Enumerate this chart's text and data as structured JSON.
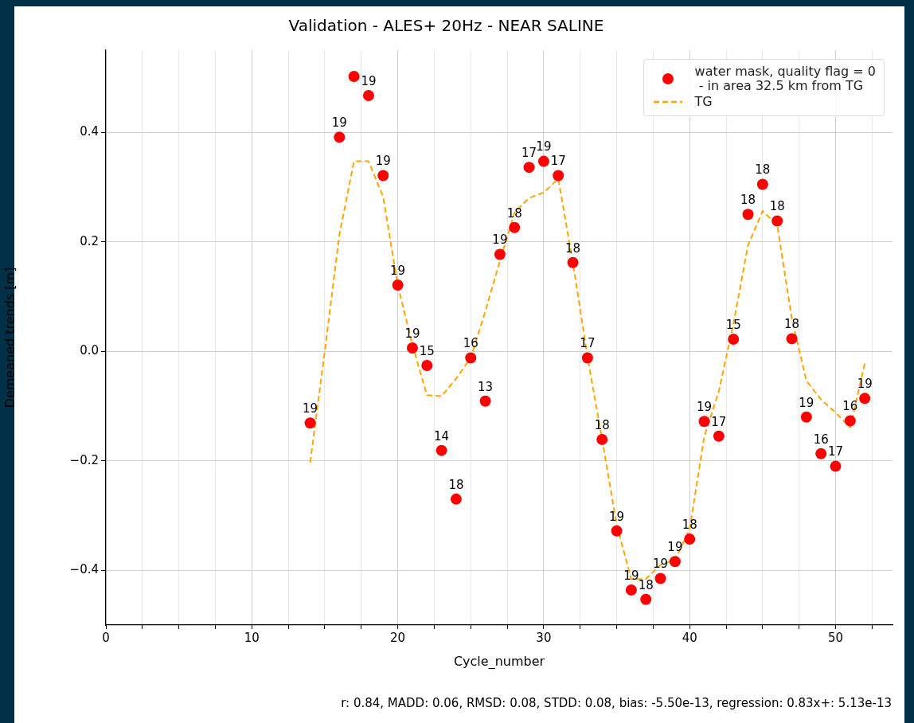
{
  "chart_data": {
    "type": "scatter",
    "title": "Validation - ALES+ 20Hz - NEAR SALINE",
    "xlabel": "Cycle_number",
    "ylabel": "Demeaned trends [m]",
    "annotations": [
      "r: 0.84, MADD: 0.06, RMSD: 0.08, STDD: 0.08, bias: -5.50e-13, regression: 0.83x+: 5.13e-13",
      {
        "text": "19",
        "x": 14,
        "y": -0.131
      },
      {
        "text": "19",
        "x": 16,
        "y": 0.391
      },
      {
        "text": "19",
        "x": 18,
        "y": 0.467
      },
      {
        "text": "19",
        "x": 19,
        "y": 0.321
      },
      {
        "text": "19",
        "x": 20,
        "y": 0.121
      },
      {
        "text": "19",
        "x": 21,
        "y": 0.006
      },
      {
        "text": "15",
        "x": 22,
        "y": -0.026
      },
      {
        "text": "14",
        "x": 23,
        "y": -0.181
      },
      {
        "text": "18",
        "x": 24,
        "y": -0.27
      },
      {
        "text": "16",
        "x": 25,
        "y": -0.012
      },
      {
        "text": "13",
        "x": 26,
        "y": -0.091
      },
      {
        "text": "19",
        "x": 27,
        "y": 0.177
      },
      {
        "text": "18",
        "x": 28,
        "y": 0.226
      },
      {
        "text": "17",
        "x": 29,
        "y": 0.336
      },
      {
        "text": "19",
        "x": 30,
        "y": 0.347
      },
      {
        "text": "17",
        "x": 31,
        "y": 0.321
      },
      {
        "text": "18",
        "x": 32,
        "y": 0.162
      },
      {
        "text": "17",
        "x": 33,
        "y": -0.012
      },
      {
        "text": "18",
        "x": 34,
        "y": -0.161
      },
      {
        "text": "19",
        "x": 35,
        "y": -0.328
      },
      {
        "text": "19",
        "x": 36,
        "y": -0.436
      },
      {
        "text": "18",
        "x": 37,
        "y": -0.453
      },
      {
        "text": "19",
        "x": 38,
        "y": -0.415
      },
      {
        "text": "19",
        "x": 39,
        "y": -0.384
      },
      {
        "text": "18",
        "x": 40,
        "y": -0.343
      },
      {
        "text": "19",
        "x": 41,
        "y": -0.128
      },
      {
        "text": "17",
        "x": 42,
        "y": -0.155
      },
      {
        "text": "15",
        "x": 43,
        "y": 0.022
      },
      {
        "text": "18",
        "x": 44,
        "y": 0.25
      },
      {
        "text": "18",
        "x": 45,
        "y": 0.305
      },
      {
        "text": "18",
        "x": 46,
        "y": 0.238
      },
      {
        "text": "18",
        "x": 47,
        "y": 0.023
      },
      {
        "text": "19",
        "x": 48,
        "y": -0.12
      },
      {
        "text": "16",
        "x": 49,
        "y": -0.187
      },
      {
        "text": "17",
        "x": 50,
        "y": -0.21
      },
      {
        "text": "16",
        "x": 51,
        "y": -0.127
      },
      {
        "text": "19",
        "x": 52,
        "y": -0.086
      }
    ],
    "xlim": [
      0,
      53.9
    ],
    "ylim": [
      -0.5,
      0.55
    ],
    "xticks": [
      0,
      {
        "value": 2.5,
        "label": null
      },
      {
        "value": 5,
        "label": null
      },
      {
        "value": 7.5,
        "label": null
      },
      10,
      {
        "value": 12.5,
        "label": null
      },
      {
        "value": 15,
        "label": null
      },
      {
        "value": 17.5,
        "label": null
      },
      20,
      {
        "value": 22.5,
        "label": null
      },
      {
        "value": 25,
        "label": null
      },
      {
        "value": 27.5,
        "label": null
      },
      30,
      {
        "value": 32.5,
        "label": null
      },
      {
        "value": 35,
        "label": null
      },
      {
        "value": 37.5,
        "label": null
      },
      40,
      {
        "value": 42.5,
        "label": null
      },
      {
        "value": 45,
        "label": null
      },
      {
        "value": 47.5,
        "label": null
      },
      50,
      {
        "value": 52.5,
        "label": null
      }
    ],
    "yticks": [
      {
        "value": -0.4,
        "label": "−0.4"
      },
      {
        "value": -0.2,
        "label": "−0.2"
      },
      {
        "value": 0,
        "label": "0.0"
      },
      0.2,
      0.4
    ],
    "grid": true,
    "legend": "top right",
    "series": [
      {
        "name": "water mask, quality flag = 0\n - in area 32.5 km from TG",
        "marker": "circle",
        "color": "#ff0000",
        "x": [
          14,
          16,
          17,
          18,
          19,
          20,
          21,
          22,
          23,
          24,
          25,
          26,
          27,
          28,
          29,
          30,
          31,
          32,
          33,
          34,
          35,
          36,
          37,
          38,
          39,
          40,
          41,
          42,
          43,
          44,
          45,
          46,
          47,
          48,
          49,
          50,
          51,
          52
        ],
        "values": [
          -0.131,
          0.391,
          0.502,
          0.467,
          0.321,
          0.121,
          0.006,
          -0.026,
          -0.181,
          -0.27,
          -0.012,
          -0.091,
          0.177,
          0.226,
          0.336,
          0.347,
          0.321,
          0.162,
          -0.012,
          -0.161,
          -0.328,
          -0.436,
          -0.453,
          -0.415,
          -0.384,
          -0.343,
          -0.128,
          -0.155,
          0.022,
          0.25,
          0.305,
          0.238,
          0.023,
          -0.12,
          -0.187,
          -0.21,
          -0.127,
          -0.086
        ]
      },
      {
        "name": "TG",
        "type": "line",
        "marker": "none",
        "line_style": "dashed",
        "color": "#ffa500",
        "x": [
          14,
          15,
          16,
          17,
          18,
          19,
          20,
          21,
          22,
          23,
          24,
          25,
          26,
          27,
          28,
          29,
          30,
          31,
          32,
          33,
          34,
          35,
          36,
          37,
          38,
          39,
          40,
          41,
          42,
          43,
          44,
          45,
          46,
          47,
          48,
          49,
          50,
          51,
          52
        ],
        "values": [
          -0.203,
          0.0,
          0.213,
          0.347,
          0.347,
          0.282,
          0.121,
          0.012,
          -0.08,
          -0.082,
          -0.05,
          -0.012,
          0.073,
          0.165,
          0.253,
          0.28,
          0.29,
          0.315,
          0.162,
          -0.01,
          -0.16,
          -0.317,
          -0.416,
          -0.416,
          -0.39,
          -0.381,
          -0.325,
          -0.156,
          -0.073,
          0.05,
          0.194,
          0.256,
          0.231,
          0.06,
          -0.054,
          -0.088,
          -0.112,
          -0.139,
          -0.022
        ]
      }
    ]
  }
}
